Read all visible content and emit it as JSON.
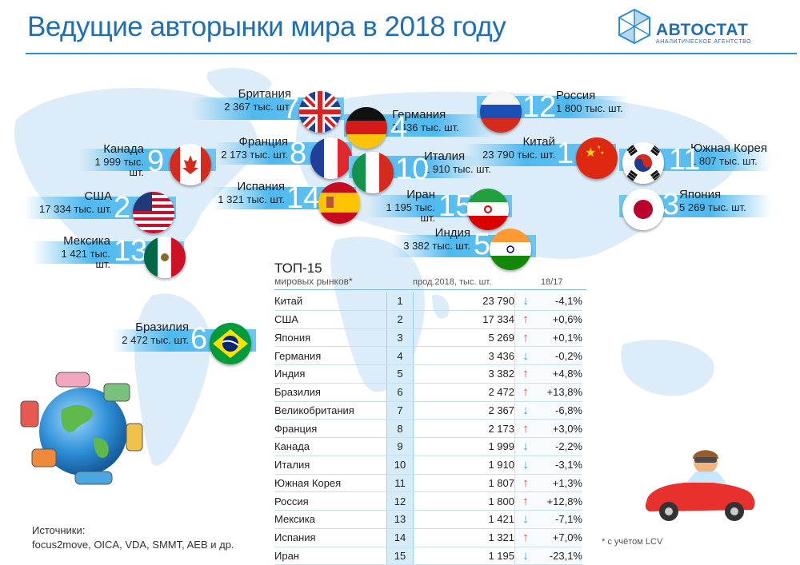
{
  "title": "Ведущие авторынки мира в 2018 году",
  "logo": {
    "name": "АВТОСТАТ",
    "subtitle": "АНАЛИТИЧЕСКОЕ АГЕНТСТВО"
  },
  "colors": {
    "title": "#1f6fb2",
    "band": "#4fb9ee",
    "up_arrow": "#e0433b",
    "down_arrow": "#2a9bd8"
  },
  "markers": [
    {
      "country": "Британия",
      "value": "2 367 тыс. шт.",
      "rank": "7",
      "flag": "uk-flag"
    },
    {
      "country": "Германия",
      "value": "3 436 тыс. шт.",
      "rank": "4",
      "flag": "germany-flag"
    },
    {
      "country": "Россия",
      "value": "1 800 тыс. шт.",
      "rank": "12",
      "flag": "russia-flag"
    },
    {
      "country": "Канада",
      "value": "1 999 тыс. шт.",
      "rank": "9",
      "flag": "canada-flag"
    },
    {
      "country": "Франция",
      "value": "2 173 тыс. шт.",
      "rank": "8",
      "flag": "france-flag"
    },
    {
      "country": "Италия",
      "value": "1 910 тыс. шт.",
      "rank": "10",
      "flag": "italy-flag"
    },
    {
      "country": "Китай",
      "value": "23 790 тыс. шт.",
      "rank": "1",
      "flag": "china-flag"
    },
    {
      "country": "Южная Корея",
      "value": "1 807 тыс. шт.",
      "rank": "11",
      "flag": "korea-flag"
    },
    {
      "country": "США",
      "value": "17 334 тыс. шт.",
      "rank": "2",
      "flag": "usa-flag"
    },
    {
      "country": "Испания",
      "value": "1 321 тыс. шт.",
      "rank": "14",
      "flag": "spain-flag"
    },
    {
      "country": "Иран",
      "value": "1 195 тыс. шт.",
      "rank": "15",
      "flag": "iran-flag"
    },
    {
      "country": "Япония",
      "value": "5 269 тыс. шт.",
      "rank": "3",
      "flag": "japan-flag"
    },
    {
      "country": "Мексика",
      "value": "1 421 тыс. шт.",
      "rank": "13",
      "flag": "mexico-flag"
    },
    {
      "country": "Индия",
      "value": "3 382 тыс. шт.",
      "rank": "5",
      "flag": "india-flag"
    },
    {
      "country": "Бразилия",
      "value": "2 472 тыс. шт.",
      "rank": "6",
      "flag": "brazil-flag"
    }
  ],
  "table": {
    "title": "ТОП-15",
    "subtitle": "мировых рынков*",
    "col_sales": "прод.2018, тыс. шт.",
    "col_change": "18/17",
    "rows": [
      {
        "country": "Китай",
        "rank": "1",
        "sales": "23 790",
        "dir": "down",
        "change": "-4,1%"
      },
      {
        "country": "США",
        "rank": "2",
        "sales": "17 334",
        "dir": "up",
        "change": "+0,6%"
      },
      {
        "country": "Япония",
        "rank": "3",
        "sales": "5 269",
        "dir": "up",
        "change": "+0,1%"
      },
      {
        "country": "Германия",
        "rank": "4",
        "sales": "3 436",
        "dir": "down",
        "change": "-0,2%"
      },
      {
        "country": "Индия",
        "rank": "5",
        "sales": "3 382",
        "dir": "up",
        "change": "+4,8%"
      },
      {
        "country": "Бразилия",
        "rank": "6",
        "sales": "2 472",
        "dir": "up",
        "change": "+13,8%"
      },
      {
        "country": "Великобритания",
        "rank": "7",
        "sales": "2 367",
        "dir": "down",
        "change": "-6,8%"
      },
      {
        "country": "Франция",
        "rank": "8",
        "sales": "2 173",
        "dir": "up",
        "change": "+3,0%"
      },
      {
        "country": "Канада",
        "rank": "9",
        "sales": "1 999",
        "dir": "down",
        "change": "-2,2%"
      },
      {
        "country": "Италия",
        "rank": "10",
        "sales": "1 910",
        "dir": "down",
        "change": "-3,1%"
      },
      {
        "country": "Южная Корея",
        "rank": "11",
        "sales": "1 807",
        "dir": "up",
        "change": "+1,3%"
      },
      {
        "country": "Россия",
        "rank": "12",
        "sales": "1 800",
        "dir": "up",
        "change": "+12,8%"
      },
      {
        "country": "Мексика",
        "rank": "13",
        "sales": "1 421",
        "dir": "down",
        "change": "-7,1%"
      },
      {
        "country": "Испания",
        "rank": "14",
        "sales": "1 321",
        "dir": "up",
        "change": "+7,0%"
      },
      {
        "country": "Иран",
        "rank": "15",
        "sales": "1 195",
        "dir": "down",
        "change": "-23,1%"
      }
    ]
  },
  "sources_heading": "Источники:",
  "sources_text": "focus2move, OICA, VDA, SMMT, AEB и др.",
  "footnote": "* с учётом LCV"
}
